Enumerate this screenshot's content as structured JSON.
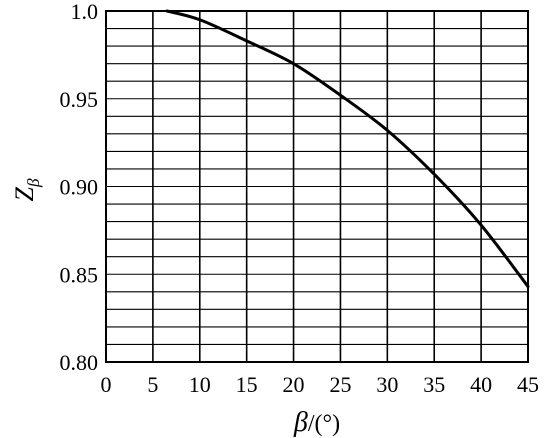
{
  "chart_data": {
    "type": "line",
    "title": "",
    "xlabel": {
      "symbol": "β",
      "unit": "/(°)"
    },
    "ylabel": {
      "symbol": "Z",
      "subscript": "β"
    },
    "xlim": [
      0,
      45
    ],
    "ylim": [
      0.8,
      1.0
    ],
    "x_ticks": [
      0,
      5,
      10,
      15,
      20,
      25,
      30,
      35,
      40,
      45
    ],
    "x_tick_labels": [
      "0",
      "5",
      "10",
      "15",
      "20",
      "25",
      "30",
      "35",
      "40",
      "45"
    ],
    "y_ticks": [
      0.8,
      0.85,
      0.9,
      0.95,
      1.0
    ],
    "y_tick_labels": [
      "0.80",
      "0.85",
      "0.90",
      "0.95",
      "1.0"
    ],
    "grid": {
      "x_step": 5,
      "y_step": 0.01
    },
    "series": [
      {
        "x": [
          6.5,
          10,
          15,
          20,
          25,
          30,
          35,
          40,
          45
        ],
        "y": [
          1.0,
          0.995,
          0.983,
          0.97,
          0.952,
          0.932,
          0.907,
          0.878,
          0.843
        ]
      }
    ]
  }
}
